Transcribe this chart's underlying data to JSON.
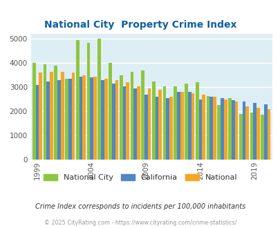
{
  "title": "National City  Property Crime Index",
  "title_color": "#1060a0",
  "subtitle": "Crime Index corresponds to incidents per 100,000 inhabitants",
  "footer": "© 2025 CityRating.com - https://www.cityrating.com/crime-statistics/",
  "years": [
    1999,
    2000,
    2001,
    2002,
    2003,
    2004,
    2005,
    2006,
    2007,
    2008,
    2009,
    2010,
    2011,
    2012,
    2013,
    2014,
    2015,
    2016,
    2017,
    2018,
    2019,
    2020
  ],
  "national_city": [
    4000,
    3950,
    3900,
    3350,
    4950,
    4850,
    5000,
    4000,
    3500,
    3650,
    3700,
    3250,
    3050,
    3050,
    3150,
    3200,
    2650,
    2250,
    2550,
    1900,
    1950,
    1850
  ],
  "california": [
    3100,
    3250,
    3300,
    3350,
    3450,
    3400,
    3300,
    3150,
    3050,
    2950,
    2700,
    2600,
    2550,
    2800,
    2800,
    2500,
    2600,
    2550,
    2450,
    2400,
    2350,
    2300
  ],
  "national": [
    3600,
    3650,
    3650,
    3600,
    3500,
    3450,
    3350,
    3300,
    3200,
    3050,
    2950,
    2900,
    2600,
    2800,
    2750,
    2700,
    2600,
    2500,
    2400,
    2200,
    2150,
    2100
  ],
  "bar_colors": {
    "national_city": "#8dc63f",
    "california": "#4f86c6",
    "national": "#f5a623"
  },
  "background_color": "#ddeef5",
  "ylim": [
    0,
    5200
  ],
  "yticks": [
    0,
    1000,
    2000,
    3000,
    4000,
    5000
  ],
  "x_tick_years": [
    1999,
    2004,
    2009,
    2014,
    2019
  ],
  "grid_color": "#ffffff",
  "legend_labels": [
    "National City",
    "California",
    "National"
  ]
}
